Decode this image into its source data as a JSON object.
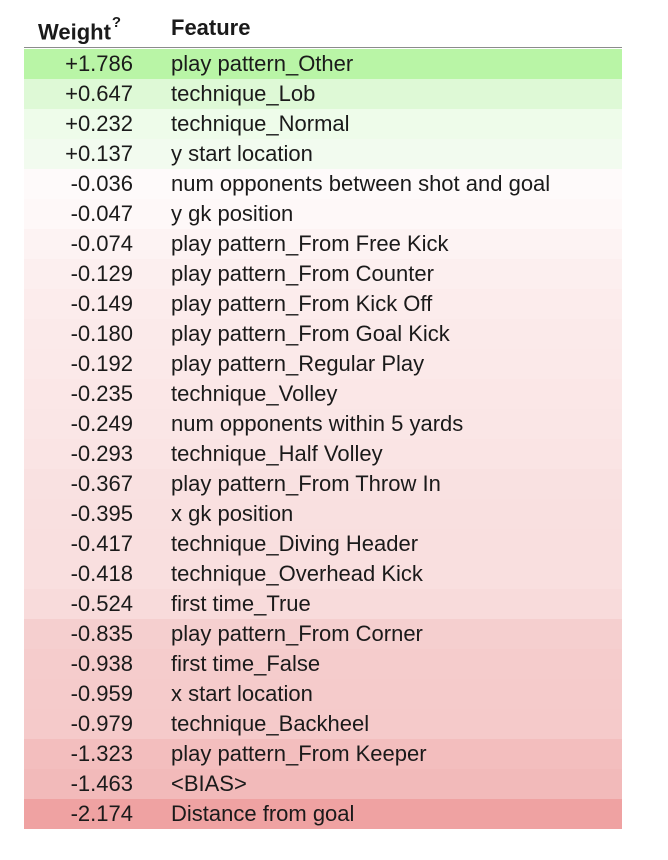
{
  "header": {
    "weight_label": "Weight",
    "weight_help": "?",
    "feature_label": "Feature"
  },
  "rows": [
    {
      "weight": "+1.786",
      "feature": "play pattern_Other",
      "bg": "#b9f5a6"
    },
    {
      "weight": "+0.647",
      "feature": "technique_Lob",
      "bg": "#def9d6"
    },
    {
      "weight": "+0.232",
      "feature": "technique_Normal",
      "bg": "#eefcea"
    },
    {
      "weight": "+0.137",
      "feature": "y start location",
      "bg": "#f2fbef"
    },
    {
      "weight": "-0.036",
      "feature": "num opponents between shot and goal",
      "bg": "#fefafa"
    },
    {
      "weight": "-0.047",
      "feature": "y gk position",
      "bg": "#fef8f8"
    },
    {
      "weight": "-0.074",
      "feature": "play pattern_From Free Kick",
      "bg": "#fdf3f3"
    },
    {
      "weight": "-0.129",
      "feature": "play pattern_From Counter",
      "bg": "#fcefef"
    },
    {
      "weight": "-0.149",
      "feature": "play pattern_From Kick Off",
      "bg": "#fcecec"
    },
    {
      "weight": "-0.180",
      "feature": "play pattern_From Goal Kick",
      "bg": "#fbeaea"
    },
    {
      "weight": "-0.192",
      "feature": "play pattern_Regular Play",
      "bg": "#fbe9e9"
    },
    {
      "weight": "-0.235",
      "feature": "technique_Volley",
      "bg": "#fbe7e7"
    },
    {
      "weight": "-0.249",
      "feature": "num opponents within 5 yards",
      "bg": "#fae6e6"
    },
    {
      "weight": "-0.293",
      "feature": "technique_Half Volley",
      "bg": "#fae4e4"
    },
    {
      "weight": "-0.367",
      "feature": "play pattern_From Throw In",
      "bg": "#f9e1e1"
    },
    {
      "weight": "-0.395",
      "feature": "x gk position",
      "bg": "#f9e0e0"
    },
    {
      "weight": "-0.417",
      "feature": "technique_Diving Header",
      "bg": "#f9dfdf"
    },
    {
      "weight": "-0.418",
      "feature": "technique_Overhead Kick",
      "bg": "#f9dfdf"
    },
    {
      "weight": "-0.524",
      "feature": "first time_True",
      "bg": "#f8dbdb"
    },
    {
      "weight": "-0.835",
      "feature": "play pattern_From Corner",
      "bg": "#f5cfcf"
    },
    {
      "weight": "-0.938",
      "feature": "first time_False",
      "bg": "#f5cccc"
    },
    {
      "weight": "-0.959",
      "feature": "x start location",
      "bg": "#f5cbcb"
    },
    {
      "weight": "-0.979",
      "feature": "technique_Backheel",
      "bg": "#f5caca"
    },
    {
      "weight": "-1.323",
      "feature": "play pattern_From Keeper",
      "bg": "#f3bebe"
    },
    {
      "weight": "-1.463",
      "feature": "<BIAS>",
      "bg": "#f2baba"
    },
    {
      "weight": "-2.174",
      "feature": "Distance from goal",
      "bg": "#efa2a2"
    }
  ]
}
